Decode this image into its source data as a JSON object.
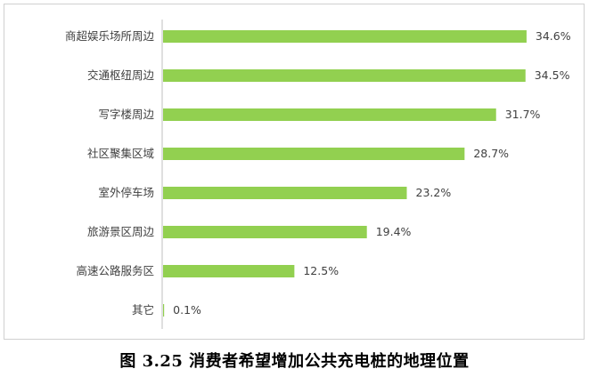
{
  "chart_data": {
    "type": "bar",
    "orientation": "horizontal",
    "categories": [
      "商超娱乐场所周边",
      "交通枢纽周边",
      "写字楼周边",
      "社区聚集区域",
      "室外停车场",
      "旅游景区周边",
      "高速公路服务区",
      "其它"
    ],
    "values": [
      34.6,
      34.5,
      31.7,
      28.7,
      23.2,
      19.4,
      12.5,
      0.1
    ],
    "value_labels": [
      "34.6%",
      "34.5%",
      "31.7%",
      "28.7%",
      "23.2%",
      "19.4%",
      "12.5%",
      "0.1%"
    ],
    "unit": "%",
    "xlim": [
      0,
      38
    ],
    "grid": false,
    "legend": "none",
    "bar_color": "#92d050"
  },
  "caption": "图 3.25 消费者希望增加公共充电桩的地理位置"
}
